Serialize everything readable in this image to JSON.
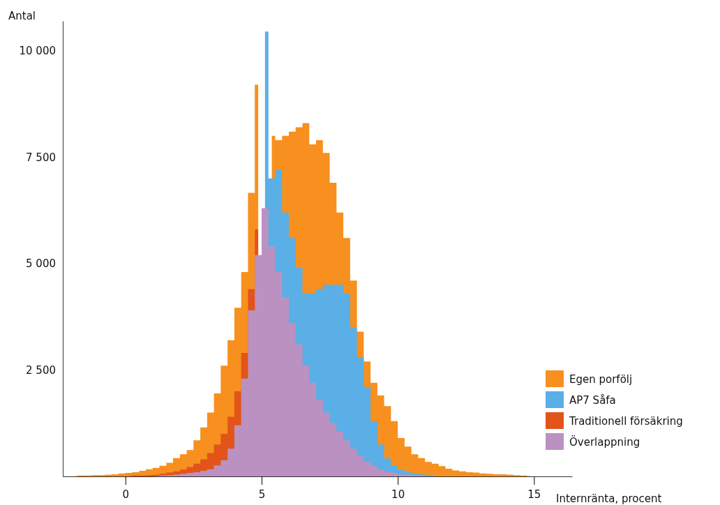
{
  "chart_data": {
    "type": "area",
    "xlabel": "Internränta, procent",
    "ylabel": "Antal",
    "x": [
      -1.875,
      -1.625,
      -1.375,
      -1.125,
      -0.875,
      -0.625,
      -0.375,
      -0.125,
      0.125,
      0.375,
      0.625,
      0.875,
      1.125,
      1.375,
      1.625,
      1.875,
      2.125,
      2.375,
      2.625,
      2.875,
      3.125,
      3.375,
      3.625,
      3.875,
      4.125,
      4.375,
      4.625,
      4.875,
      5.125,
      5.375,
      5.625,
      5.875,
      6.125,
      6.375,
      6.625,
      6.875,
      7.125,
      7.375,
      7.625,
      7.875,
      8.125,
      8.375,
      8.625,
      8.875,
      9.125,
      9.375,
      9.625,
      9.875,
      10.125,
      10.375,
      10.625,
      10.875,
      11.125,
      11.375,
      11.625,
      11.875,
      12.125,
      12.375,
      12.625,
      12.875,
      13.125,
      13.375,
      13.625,
      13.875,
      14.125,
      14.375,
      14.625,
      14.875
    ],
    "series": [
      {
        "name": "Egen porfölj",
        "color": "#f7901e",
        "values": [
          10,
          20,
          20,
          30,
          30,
          40,
          50,
          70,
          80,
          100,
          130,
          170,
          200,
          250,
          320,
          430,
          520,
          620,
          850,
          1150,
          1500,
          1950,
          2600,
          3200,
          3960,
          4800,
          6660,
          9200,
          null,
          8000,
          7900,
          8000,
          8100,
          8200,
          8300,
          7800,
          7900,
          7600,
          6900,
          6200,
          5600,
          4600,
          3400,
          2700,
          2200,
          1900,
          1650,
          1300,
          900,
          700,
          520,
          430,
          340,
          300,
          240,
          180,
          140,
          120,
          100,
          90,
          70,
          60,
          50,
          50,
          40,
          30,
          20,
          10
        ]
      },
      {
        "name": "AP7 Såfa",
        "color": "#5aafe6",
        "values": [
          null,
          null,
          null,
          null,
          null,
          null,
          null,
          null,
          null,
          null,
          null,
          null,
          null,
          null,
          null,
          null,
          null,
          null,
          null,
          null,
          null,
          null,
          null,
          null,
          null,
          null,
          null,
          null,
          10450,
          7000,
          7200,
          6200,
          5600,
          4900,
          4300,
          4300,
          4400,
          4500,
          4500,
          4500,
          4300,
          3500,
          2800,
          2100,
          1300,
          750,
          420,
          260,
          160,
          100,
          70,
          50,
          30,
          20,
          null,
          null,
          null,
          null,
          null,
          null,
          null,
          null,
          null,
          null,
          null,
          null,
          null,
          null
        ]
      },
      {
        "name": "Traditionell försäkring",
        "color": "#e2541a",
        "values": [
          null,
          null,
          null,
          null,
          null,
          null,
          null,
          null,
          10,
          20,
          20,
          30,
          40,
          60,
          90,
          120,
          160,
          220,
          300,
          400,
          550,
          750,
          1000,
          1400,
          2000,
          2900,
          4400,
          5800,
          null,
          null,
          null,
          null,
          null,
          null,
          null,
          null,
          null,
          null,
          null,
          null,
          null,
          null,
          null,
          null,
          null,
          null,
          null,
          null,
          null,
          null,
          null,
          null,
          null,
          null,
          null,
          null,
          null,
          null,
          null,
          null,
          null,
          null,
          null,
          null,
          null,
          null,
          null,
          null
        ]
      },
      {
        "name": "Överlappning",
        "color": "#bb91c1",
        "values": [
          null,
          null,
          null,
          null,
          null,
          null,
          null,
          null,
          null,
          null,
          null,
          null,
          10,
          20,
          30,
          40,
          60,
          80,
          100,
          130,
          170,
          260,
          380,
          650,
          1200,
          2300,
          3900,
          5200,
          6300,
          5400,
          4800,
          4200,
          3600,
          3100,
          2600,
          2200,
          1800,
          1500,
          1250,
          1050,
          850,
          650,
          480,
          350,
          250,
          170,
          110,
          80,
          50,
          40,
          30,
          20,
          10,
          null,
          null,
          null,
          null,
          null,
          null,
          null,
          null,
          null,
          null,
          null,
          null,
          null,
          null,
          null
        ]
      }
    ],
    "xlim": [
      -2.3,
      16.4
    ],
    "xticks": [
      0,
      5,
      10,
      15
    ],
    "ylim": [
      0,
      10700
    ],
    "yticks": [
      {
        "value": 2500,
        "label": "2 500"
      },
      {
        "value": 5000,
        "label": "5 000"
      },
      {
        "value": 7500,
        "label": "7 500"
      },
      {
        "value": 10000,
        "label": "10 000"
      }
    ],
    "legend": "bottom right"
  }
}
